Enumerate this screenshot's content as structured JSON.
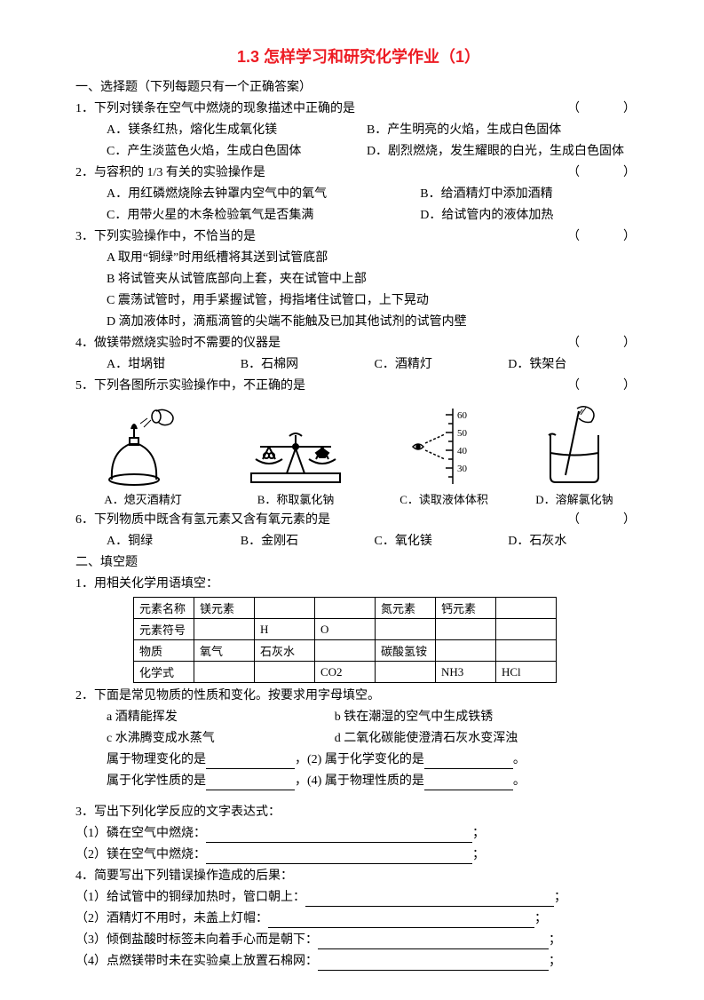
{
  "title": "1.3 怎样学习和研究化学作业（1）",
  "section1_heading": "一、选择题（下列每题只有一个正确答案）",
  "q1": {
    "stem": "1．下列对镁条在空气中燃烧的现象描述中正确的是",
    "paren": "（　　）",
    "a": "A．镁条红热，熔化生成氧化镁",
    "b": "B．产生明亮的火焰，生成白色固体",
    "c": "C．产生淡蓝色火焰，生成白色固体",
    "d": "D．剧烈燃烧，发生耀眼的白光，生成白色固体"
  },
  "q2": {
    "stem": "2．与容积的 1/3 有关的实验操作是",
    "paren": "（　　）",
    "a": "A．用红磷燃烧除去钟罩内空气中的氧气",
    "b": "B．给酒精灯中添加酒精",
    "c": "C．用带火星的木条检验氧气是否集满",
    "d": "D．给试管内的液体加热"
  },
  "q3": {
    "stem": "3．下列实验操作中，不恰当的是",
    "paren": "（　　）",
    "a": "A 取用“铜绿”时用纸槽将其送到试管底部",
    "b": "B 将试管夹从试管底部向上套，夹在试管中上部",
    "c": "C 震荡试管时，用手紧握试管，拇指堵住试管口，上下晃动",
    "d": "D 滴加液体时，滴瓶滴管的尖端不能触及已加其他试剂的试管内壁"
  },
  "q4": {
    "stem": "4．做镁带燃烧实验时不需要的仪器是",
    "paren": "（　　）",
    "a": "A．坩埚钳",
    "b": "B．石棉网",
    "c": "C．酒精灯",
    "d": "D．铁架台"
  },
  "q5": {
    "stem": "5．下列各图所示实验操作中，不正确的是",
    "paren": "（　　）",
    "diagrams": {
      "a": "A．熄灭酒精灯",
      "b": "B．称取氯化钠",
      "c": "C．读取液体体积",
      "d": "D．溶解氯化钠",
      "grad_marks": [
        "60",
        "50",
        "40",
        "30"
      ]
    }
  },
  "q6": {
    "stem": "6．下列物质中既含有氢元素又含有氧元素的是",
    "paren": "（　　）",
    "a": "A．铜绿",
    "b": "B．金刚石",
    "c": "C．氧化镁",
    "d": "D．石灰水"
  },
  "section2_heading": "二、填空题",
  "f1": {
    "stem": "1．用相关化学用语填空：",
    "table": {
      "rows": [
        [
          "元素名称",
          "镁元素",
          "",
          "",
          "氮元素",
          "钙元素",
          ""
        ],
        [
          "元素符号",
          "",
          "H",
          "O",
          "",
          "",
          ""
        ],
        [
          "物质",
          "氧气",
          "石灰水",
          "",
          "碳酸氢铵",
          "",
          ""
        ],
        [
          "化学式",
          "",
          "",
          "CO2",
          "",
          "NH3",
          "HCl"
        ]
      ]
    }
  },
  "f2": {
    "stem": "2．下面是常见物质的性质和变化。按要求用字母填空。",
    "a": "a 酒精能挥发",
    "b": "b 铁在潮湿的空气中生成铁锈",
    "c": "c 水沸腾变成水蒸气",
    "d": "d 二氧化碳能使澄清石灰水变浑浊",
    "line1a": "属于物理变化的是",
    "line1b": "，(2) 属于化学变化的是",
    "line1c": "。",
    "line2a": "属于化学性质的是",
    "line2b": "，(4) 属于物理性质的是",
    "line2c": "。"
  },
  "f3": {
    "stem": "3．写出下列化学反应的文字表达式：",
    "p1": "（1）磷在空气中燃烧：",
    "p2": "（2）镁在空气中燃烧：",
    "semi": "；"
  },
  "f4": {
    "stem": "4．简要写出下列错误操作造成的后果：",
    "p1": "（1）给试管中的铜绿加热时，管口朝上：",
    "p2": "（2）酒精灯不用时，未盖上灯帽：",
    "p3": "（3）倾倒盐酸时标签未向着手心而是朝下：",
    "p4": "（4）点燃镁带时未在实验桌上放置石棉网：",
    "semi": "；"
  }
}
